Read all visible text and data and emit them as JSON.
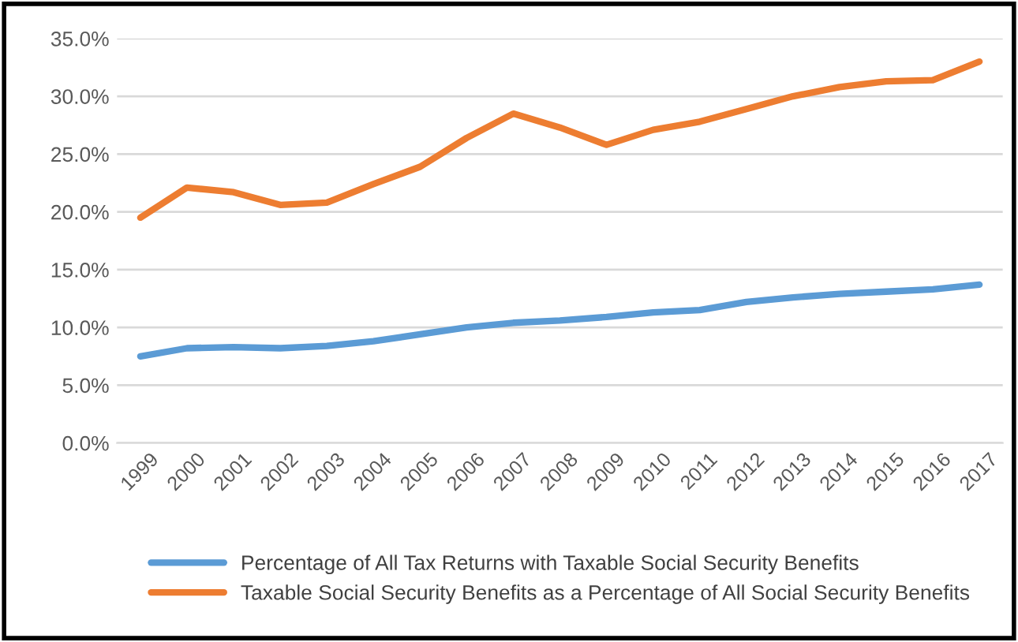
{
  "chart_data": {
    "type": "line",
    "categories": [
      "1999",
      "2000",
      "2001",
      "2002",
      "2003",
      "2004",
      "2005",
      "2006",
      "2007",
      "2008",
      "2009",
      "2010",
      "2011",
      "2012",
      "2013",
      "2014",
      "2015",
      "2016",
      "2017"
    ],
    "series": [
      {
        "name": "Percentage of All Tax Returns with Taxable Social Security Benefits",
        "color": "#5b9bd5",
        "values": [
          7.5,
          8.2,
          8.3,
          8.2,
          8.4,
          8.8,
          9.4,
          10.0,
          10.4,
          10.6,
          10.9,
          11.3,
          11.5,
          12.2,
          12.6,
          12.9,
          13.1,
          13.3,
          13.7
        ]
      },
      {
        "name": "Taxable Social Security Benefits as a Percentage of All Social Security Benefits",
        "color": "#ed7d31",
        "values": [
          19.5,
          22.1,
          21.7,
          20.6,
          20.8,
          22.4,
          23.9,
          26.4,
          28.5,
          27.3,
          25.8,
          27.1,
          27.8,
          28.9,
          30.0,
          30.8,
          31.3,
          31.4,
          33.0
        ]
      }
    ],
    "ylim": [
      0,
      35
    ],
    "yticks": [
      {
        "value": 0,
        "label": "0.0%"
      },
      {
        "value": 5,
        "label": "5.0%"
      },
      {
        "value": 10,
        "label": "10.0%"
      },
      {
        "value": 15,
        "label": "15.0%"
      },
      {
        "value": 20,
        "label": "20.0%"
      },
      {
        "value": 25,
        "label": "25.0%"
      },
      {
        "value": 30,
        "label": "30.0%"
      },
      {
        "value": 35,
        "label": "35.0%"
      }
    ],
    "grid": "y",
    "legend": "bottom",
    "marker": "none",
    "line_style": "solid"
  }
}
